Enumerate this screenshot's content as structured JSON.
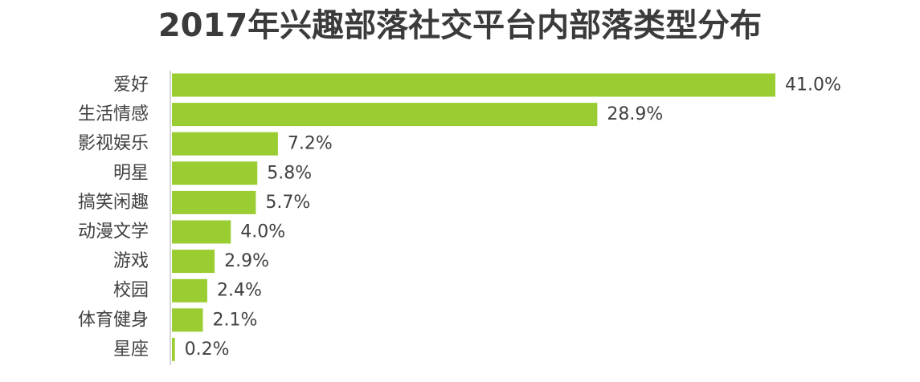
{
  "chart_data": {
    "type": "bar",
    "orientation": "horizontal",
    "title": "2017年兴趣部落社交平台内部落类型分布",
    "categories": [
      "爱好",
      "生活情感",
      "影视娱乐",
      "明星",
      "搞笑闲趣",
      "动漫文学",
      "游戏",
      "校园",
      "体育健身",
      "星座"
    ],
    "values": [
      41.0,
      28.9,
      7.2,
      5.8,
      5.7,
      4.0,
      2.9,
      2.4,
      2.1,
      0.2
    ],
    "value_labels": [
      "41.0%",
      "28.9%",
      "7.2%",
      "5.8%",
      "5.7%",
      "4.0%",
      "2.9%",
      "2.4%",
      "2.1%",
      "0.2%"
    ],
    "unit": "%",
    "xlim": [
      0,
      41.0
    ],
    "grid": false,
    "legend": "none",
    "bar_color": "#9acd32",
    "axis_color": "#c8c8c8"
  }
}
